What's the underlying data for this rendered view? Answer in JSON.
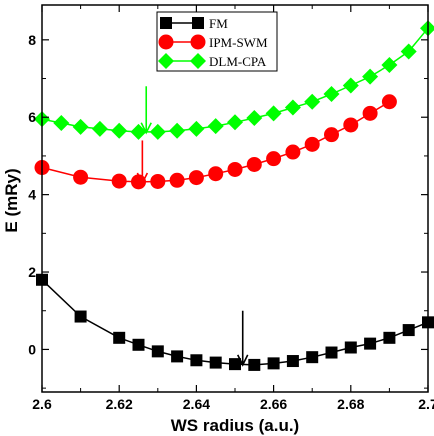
{
  "chart_data": {
    "type": "line",
    "title": "",
    "xlabel": "WS radius (a.u.)",
    "ylabel": "E (mRy)",
    "xlim": [
      2.6,
      2.7
    ],
    "ylim": [
      -1.1,
      8.9
    ],
    "xticks": [
      2.6,
      2.62,
      2.64,
      2.66,
      2.68,
      2.7
    ],
    "xtick_labels": [
      "2.6",
      "2.62",
      "2.64",
      "2.66",
      "2.68",
      "2.7"
    ],
    "yticks": [
      0,
      2,
      4,
      6,
      8
    ],
    "ytick_labels": [
      "0",
      "2",
      "4",
      "6",
      "8"
    ],
    "grid": false,
    "legend_position": "top-center",
    "series": [
      {
        "name": "FM",
        "color": "#000000",
        "marker": "square",
        "x": [
          2.6,
          2.61,
          2.62,
          2.625,
          2.63,
          2.635,
          2.64,
          2.645,
          2.65,
          2.655,
          2.66,
          2.665,
          2.67,
          2.675,
          2.68,
          2.685,
          2.69,
          2.695,
          2.7
        ],
        "y": [
          1.8,
          0.85,
          0.3,
          0.12,
          -0.05,
          -0.18,
          -0.28,
          -0.34,
          -0.38,
          -0.4,
          -0.36,
          -0.3,
          -0.2,
          -0.08,
          0.05,
          0.15,
          0.3,
          0.5,
          0.7
        ]
      },
      {
        "name": "IPM-SWM",
        "color": "#ff0000",
        "marker": "circle",
        "x": [
          2.6,
          2.61,
          2.62,
          2.625,
          2.63,
          2.635,
          2.64,
          2.645,
          2.65,
          2.655,
          2.66,
          2.665,
          2.67,
          2.675,
          2.68,
          2.685,
          2.69
        ],
        "y": [
          4.7,
          4.45,
          4.35,
          4.33,
          4.34,
          4.37,
          4.44,
          4.54,
          4.65,
          4.78,
          4.93,
          5.1,
          5.3,
          5.55,
          5.8,
          6.1,
          6.4
        ]
      },
      {
        "name": "DLM-CPA",
        "color": "#00ff00",
        "marker": "diamond",
        "x": [
          2.6,
          2.605,
          2.61,
          2.615,
          2.62,
          2.625,
          2.63,
          2.635,
          2.64,
          2.645,
          2.65,
          2.655,
          2.66,
          2.665,
          2.67,
          2.675,
          2.68,
          2.685,
          2.69,
          2.695,
          2.7
        ],
        "y": [
          5.95,
          5.85,
          5.75,
          5.7,
          5.65,
          5.62,
          5.62,
          5.65,
          5.7,
          5.77,
          5.87,
          5.98,
          6.1,
          6.25,
          6.4,
          6.6,
          6.82,
          7.05,
          7.35,
          7.7,
          8.3
        ]
      }
    ],
    "annotations": [
      {
        "kind": "arrow",
        "x": 2.627,
        "y_from": 6.8,
        "y_to": 5.6,
        "color": "#00ff00"
      },
      {
        "kind": "arrow",
        "x": 2.626,
        "y_from": 5.4,
        "y_to": 4.3,
        "color": "#ff0000"
      },
      {
        "kind": "arrow",
        "x": 2.652,
        "y_from": 1.0,
        "y_to": -0.4,
        "color": "#000000"
      }
    ]
  }
}
